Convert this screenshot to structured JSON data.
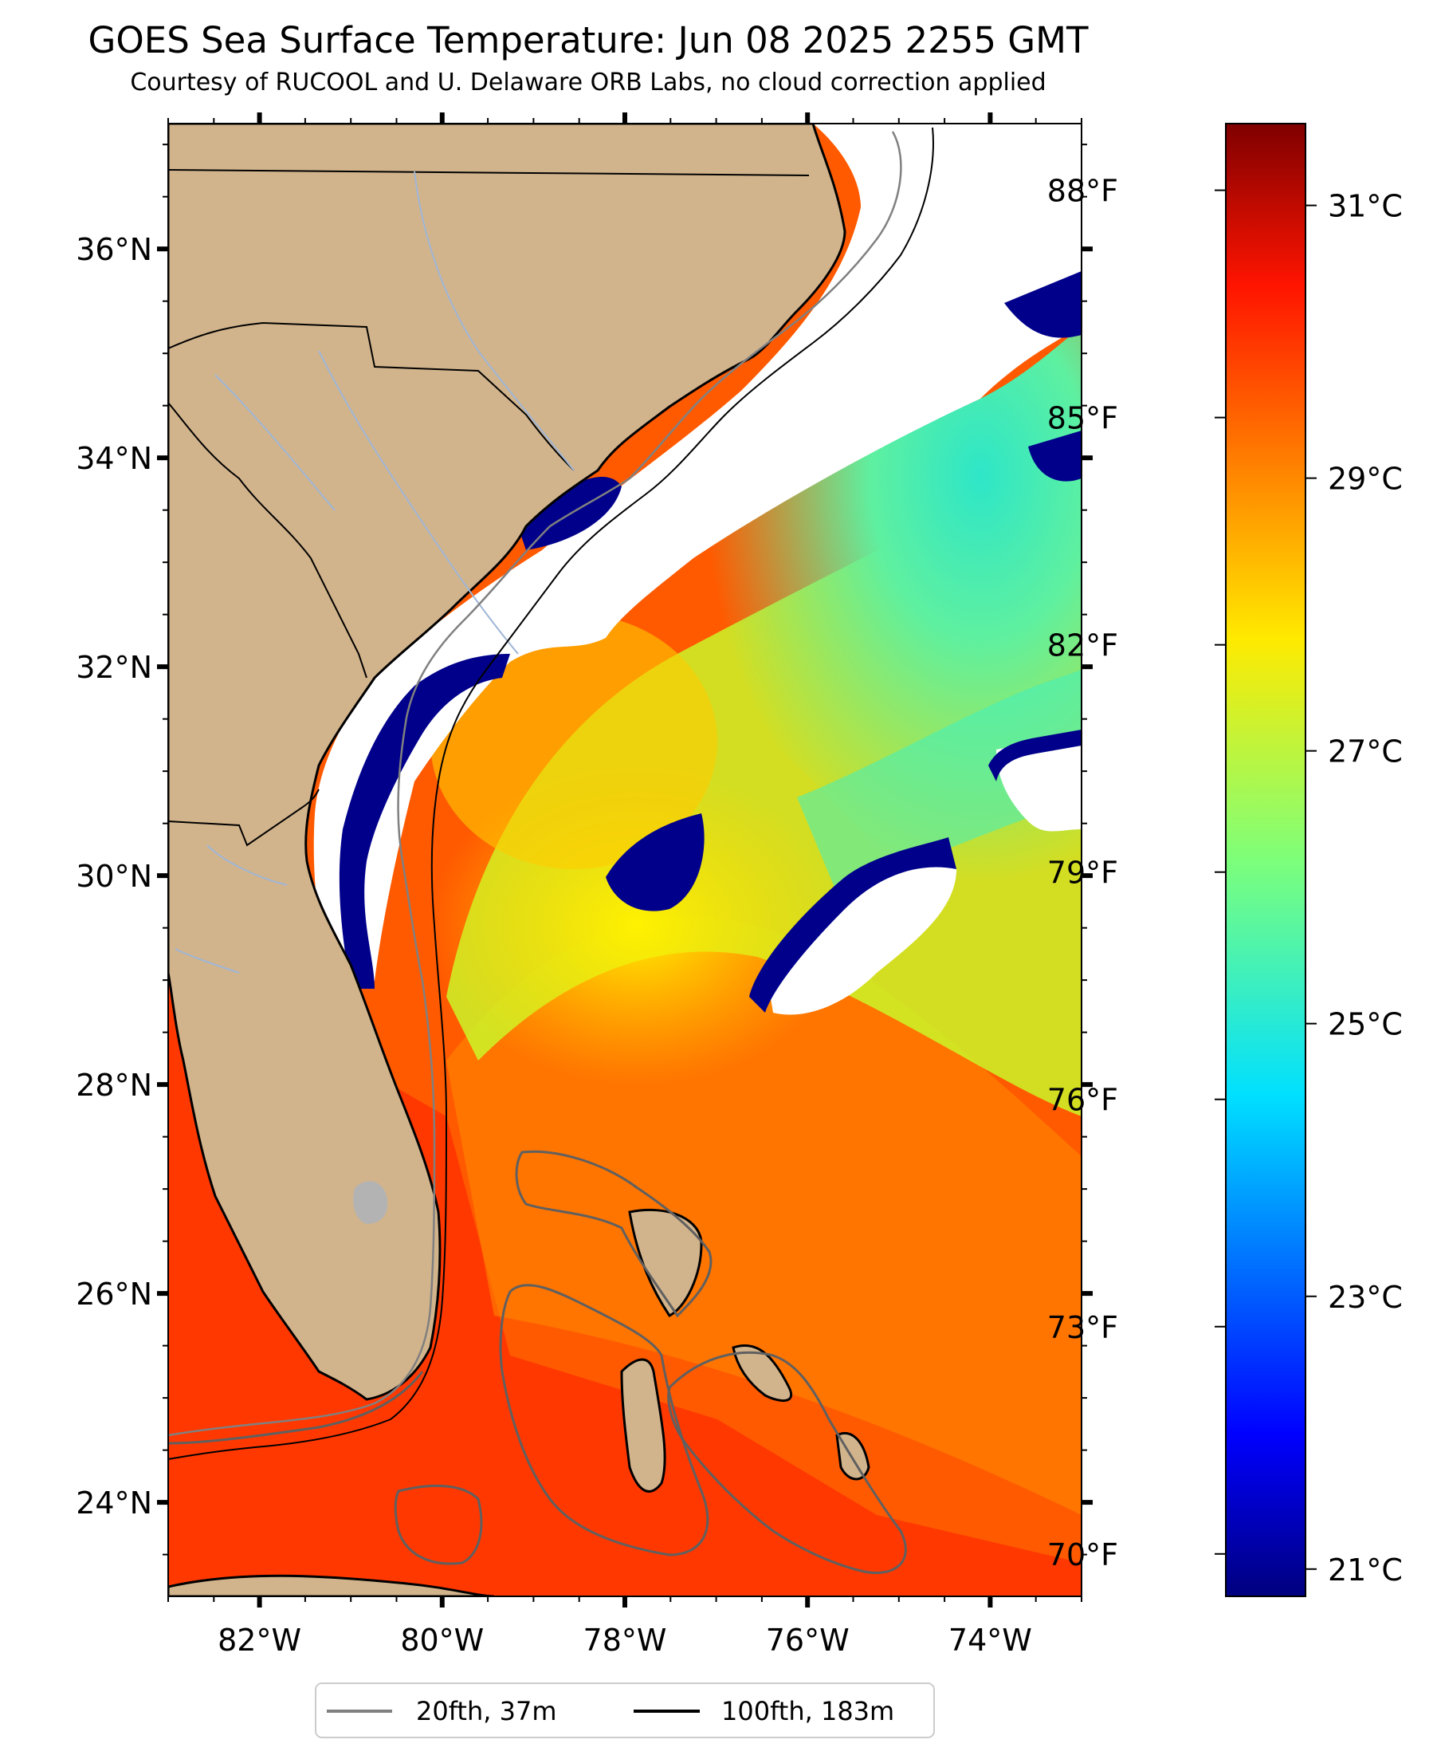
{
  "title": "GOES Sea Surface Temperature: Jun 08 2025 2255 GMT",
  "subtitle": "Courtesy of RUCOOL and U. Delaware ORB Labs, no cloud correction applied",
  "map": {
    "lon_range": [
      -83.0,
      -73.0
    ],
    "lat_range": [
      23.1,
      37.2
    ],
    "lon_ticks": [
      {
        "value": -82,
        "label": "82°W"
      },
      {
        "value": -80,
        "label": "80°W"
      },
      {
        "value": -78,
        "label": "78°W"
      },
      {
        "value": -76,
        "label": "76°W"
      },
      {
        "value": -74,
        "label": "74°W"
      }
    ],
    "lat_ticks": [
      {
        "value": 24,
        "label": "24°N"
      },
      {
        "value": 26,
        "label": "26°N"
      },
      {
        "value": 28,
        "label": "28°N"
      },
      {
        "value": 30,
        "label": "30°N"
      },
      {
        "value": 32,
        "label": "32°N"
      },
      {
        "value": 34,
        "label": "34°N"
      },
      {
        "value": 36,
        "label": "36°N"
      }
    ],
    "colors": {
      "land": "#d2b48c",
      "cloud_mask": "#ffffff",
      "cold_water": "#00008b",
      "lakes": "#b3b3b3",
      "rivers": "#9fb6d6"
    }
  },
  "colorbar": {
    "colormap": "jet",
    "min_c": 20.8,
    "max_c": 31.6,
    "celsius_ticks": [
      {
        "value": 21,
        "label": "21°C"
      },
      {
        "value": 23,
        "label": "23°C"
      },
      {
        "value": 25,
        "label": "25°C"
      },
      {
        "value": 27,
        "label": "27°C"
      },
      {
        "value": 29,
        "label": "29°C"
      },
      {
        "value": 31,
        "label": "31°C"
      }
    ],
    "fahrenheit_ticks": [
      {
        "value": 70,
        "label": "70°F"
      },
      {
        "value": 73,
        "label": "73°F"
      },
      {
        "value": 76,
        "label": "76°F"
      },
      {
        "value": 79,
        "label": "79°F"
      },
      {
        "value": 82,
        "label": "82°F"
      },
      {
        "value": 85,
        "label": "85°F"
      },
      {
        "value": 88,
        "label": "88°F"
      }
    ]
  },
  "legend": {
    "items": [
      {
        "label": "20fth, 37m",
        "color": "#808080"
      },
      {
        "label": "100fth, 183m",
        "color": "#000000"
      }
    ]
  }
}
